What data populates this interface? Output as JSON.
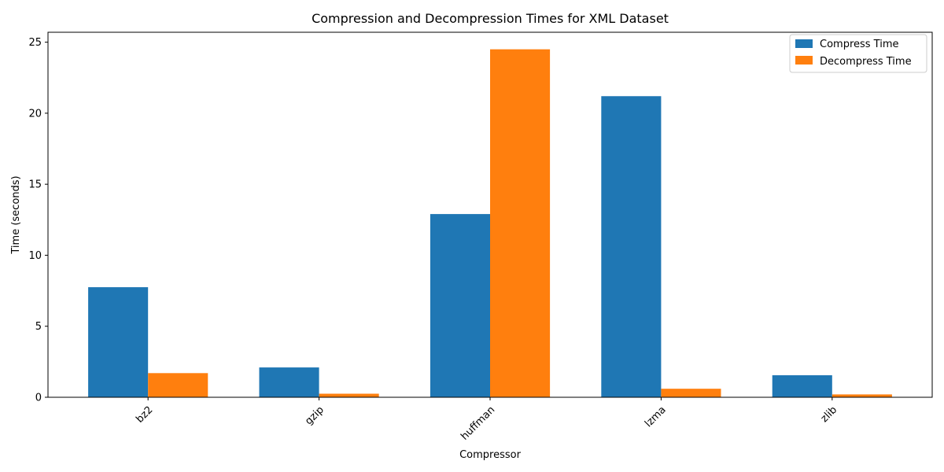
{
  "chart_data": {
    "type": "bar",
    "title": "Compression and Decompression Times for XML Dataset",
    "xlabel": "Compressor",
    "ylabel": "Time (seconds)",
    "categories": [
      "bz2",
      "gzip",
      "huffman",
      "lzma",
      "zlib"
    ],
    "series": [
      {
        "name": "Compress Time",
        "color": "#1f77b4",
        "values": [
          7.75,
          2.1,
          12.9,
          21.2,
          1.55
        ]
      },
      {
        "name": "Decompress Time",
        "color": "#ff7f0e",
        "values": [
          1.7,
          0.25,
          24.5,
          0.6,
          0.2
        ]
      }
    ],
    "ylim": [
      0,
      25.7
    ],
    "yticks": [
      0,
      5,
      10,
      15,
      20,
      25
    ],
    "ytick_labels": [
      "0",
      "5",
      "10",
      "15",
      "20",
      "25"
    ],
    "xtick_rotation": 45,
    "legend_position": "top-right",
    "grid": false
  }
}
